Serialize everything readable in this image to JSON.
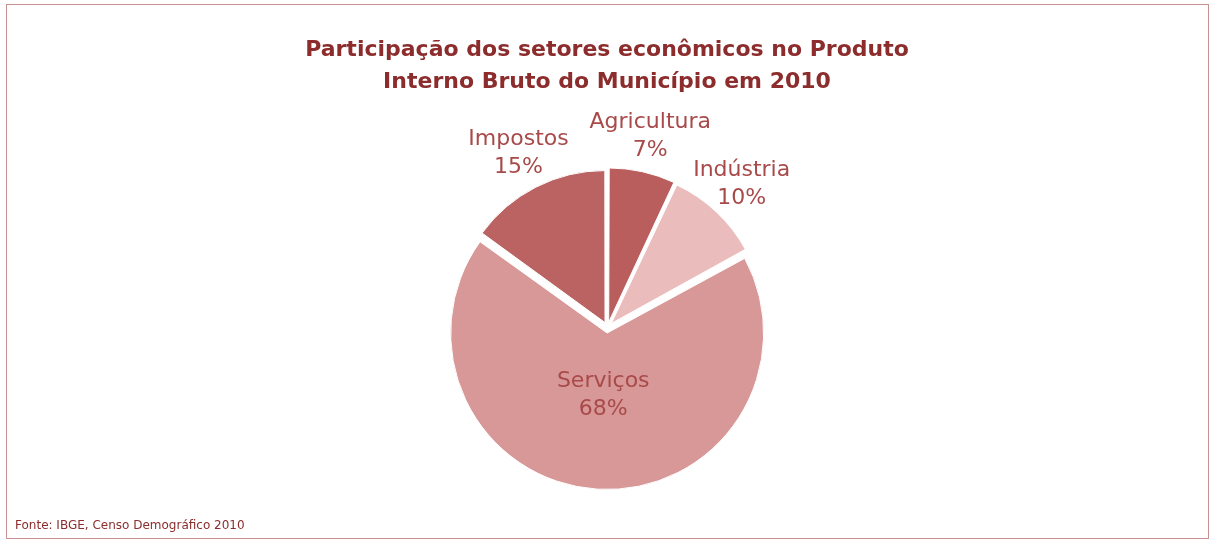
{
  "chart_data": {
    "type": "pie",
    "title": "Participação dos setores econômicos no Produto Interno Bruto do Município em 2010",
    "categories": [
      "Agricultura",
      "Indústria",
      "Serviços",
      "Impostos"
    ],
    "values": [
      7,
      10,
      68,
      15
    ],
    "value_labels": [
      "7%",
      "10%",
      "68%",
      "15%"
    ],
    "colors": [
      "#b95d5d",
      "#ebbcbc",
      "#d99898",
      "#bb6262"
    ],
    "legend": false,
    "annotations": [
      "Fonte: IBGE, Censo Demográfico 2010"
    ]
  }
}
